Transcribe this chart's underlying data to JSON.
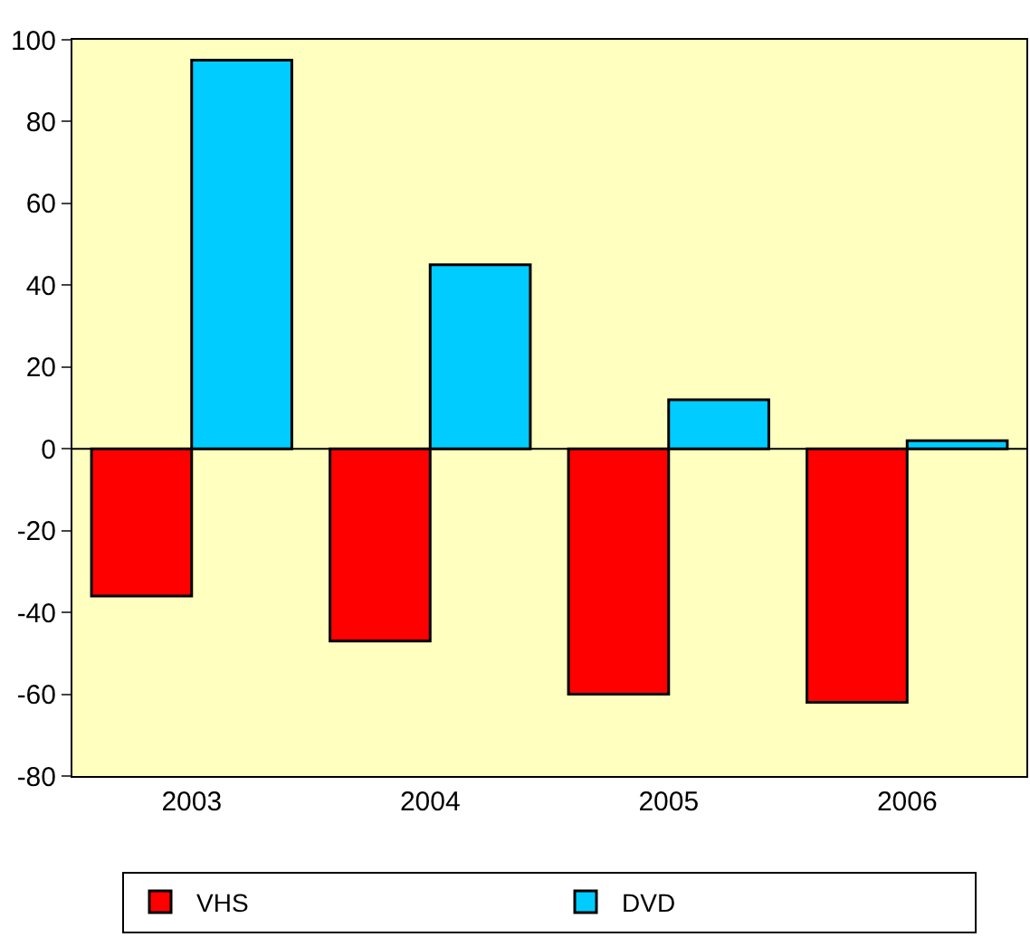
{
  "chart_data": {
    "type": "bar",
    "categories": [
      "2003",
      "2004",
      "2005",
      "2006"
    ],
    "series": [
      {
        "name": "VHS",
        "color": "#ff0000",
        "values": [
          -36,
          -47,
          -60,
          -62
        ]
      },
      {
        "name": "DVD",
        "color": "#00ccff",
        "values": [
          95,
          45,
          12,
          2
        ]
      }
    ],
    "ylim": [
      -80,
      100
    ],
    "yticks": [
      -80,
      -60,
      -40,
      -20,
      0,
      20,
      40,
      60,
      80,
      100
    ],
    "legend": "bottom"
  }
}
